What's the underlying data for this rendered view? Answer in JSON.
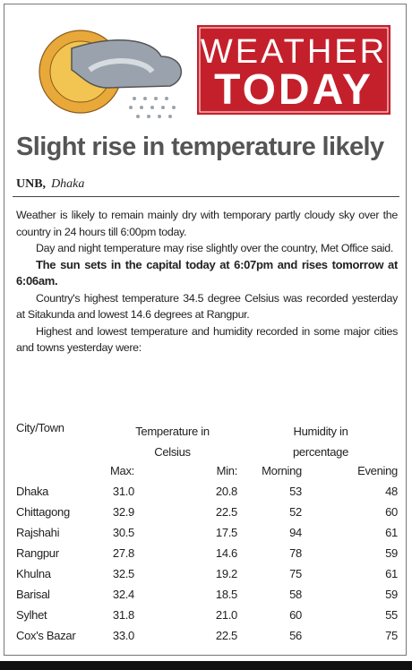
{
  "header": {
    "title_line1": "WEATHER",
    "title_line2": "TODAY"
  },
  "article": {
    "headline": "Slight rise in temperature likely",
    "byline": {
      "agency": "UNB,",
      "location": "Dhaka"
    },
    "paragraphs": [
      {
        "text": "Weather is likely to remain mainly dry with temporary partly cloudy sky over the country in 24 hours till 6:00pm today.",
        "bold": false,
        "indent": false
      },
      {
        "text": "Day and night temperature may rise slightly over the country, Met Office said.",
        "bold": false,
        "indent": true
      },
      {
        "text": "The sun sets in the capital today at 6:07pm and rises tomorrow at 6:06am.",
        "bold": true,
        "indent": true
      },
      {
        "text": "Country's highest temperature 34.5 degree Celsius was recorded yesterday at Sitakunda and lowest 14.6 degrees at Rangpur.",
        "bold": false,
        "indent": true
      },
      {
        "text": "Highest and lowest temperature and humidity recorded in some major cities and towns yesterday were:",
        "bold": false,
        "indent": true
      }
    ]
  },
  "table": {
    "headers": {
      "city": "City/Town",
      "temperature": "Temperature in Celsius",
      "humidity": "Humidity in percentage"
    },
    "subheaders": [
      "Max:",
      "Min:",
      "Morning",
      "Evening"
    ],
    "rows": [
      [
        "Dhaka",
        "31.0",
        "20.8",
        "53",
        "48"
      ],
      [
        "Chittagong",
        "32.9",
        "22.5",
        "52",
        "60"
      ],
      [
        "Rajshahi",
        "30.5",
        "17.5",
        "94",
        "61"
      ],
      [
        "Rangpur",
        "27.8",
        "14.6",
        "78",
        "59"
      ],
      [
        "Khulna",
        "32.5",
        "19.2",
        "75",
        "61"
      ],
      [
        "Barisal",
        "32.4",
        "18.5",
        "58",
        "59"
      ],
      [
        "Sylhet",
        "31.8",
        "21.0",
        "60",
        "55"
      ],
      [
        "Cox's Bazar",
        "33.0",
        "22.5",
        "56",
        "75"
      ]
    ]
  }
}
